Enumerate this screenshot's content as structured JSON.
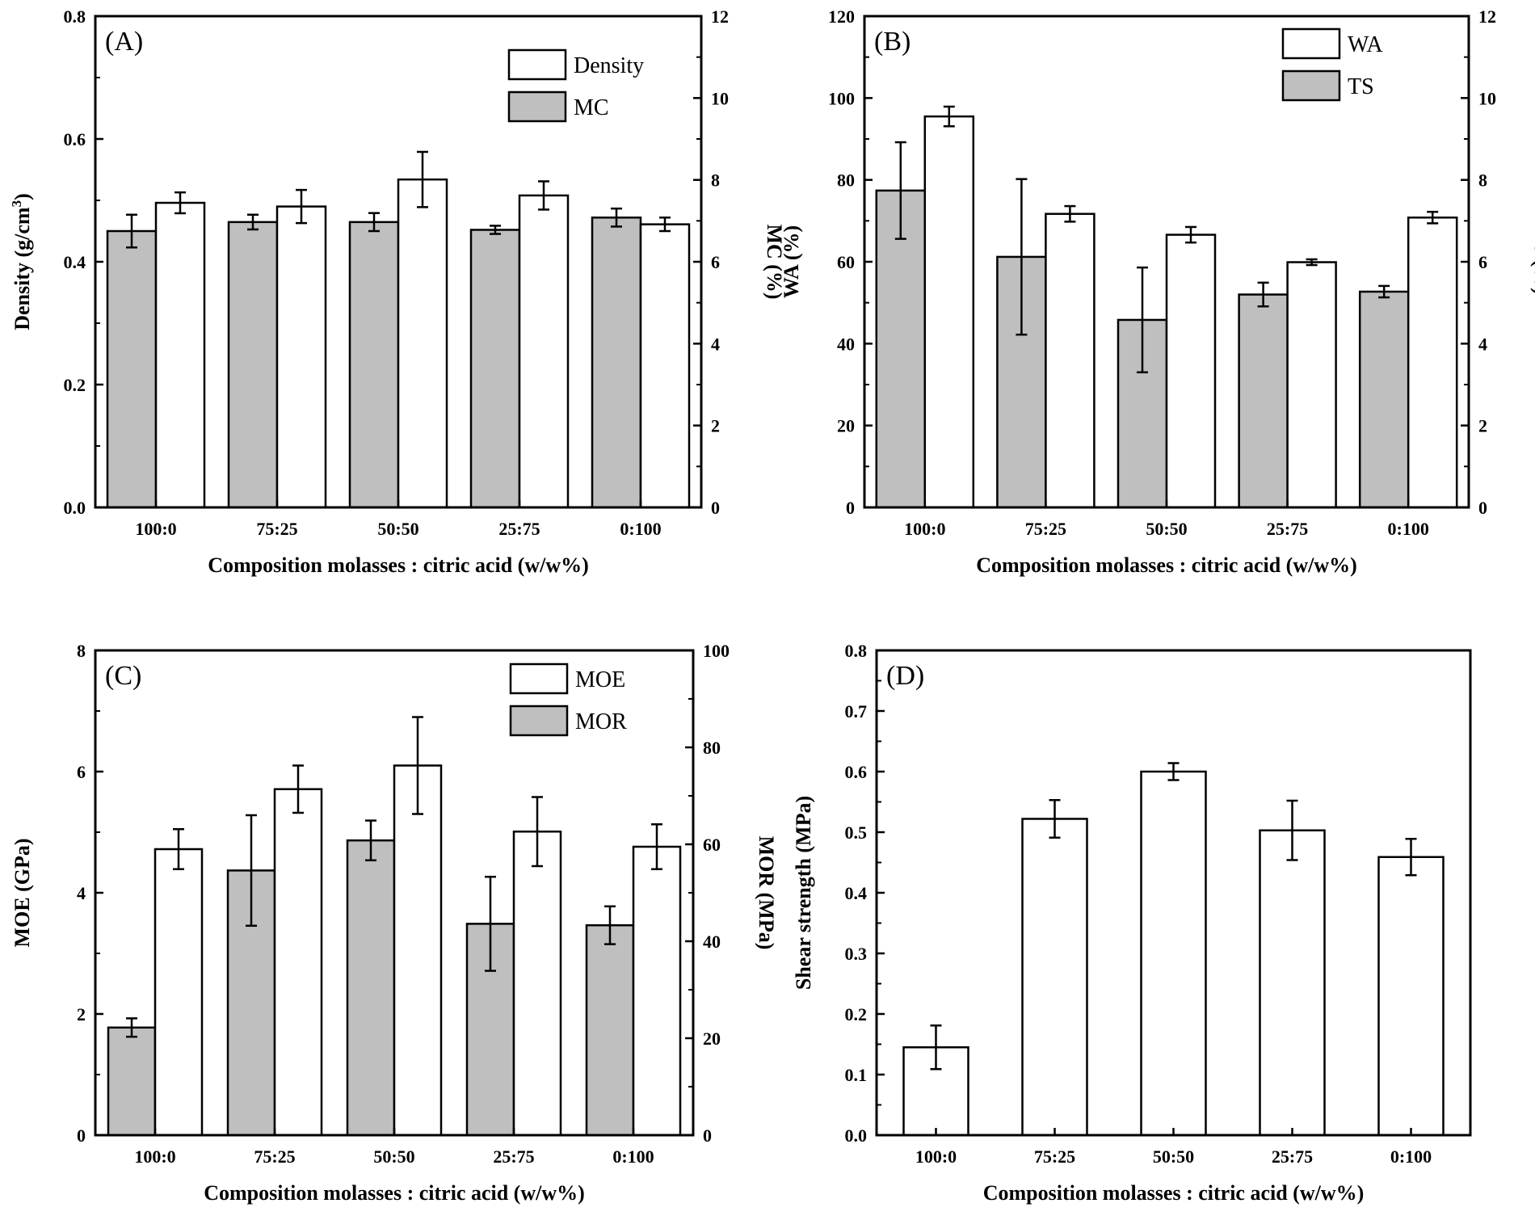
{
  "chart_data": [
    {
      "id": "A",
      "type": "bar",
      "panel_label": "(A)",
      "categories": [
        "100:0",
        "75:25",
        "50:50",
        "25:75",
        "0:100"
      ],
      "xlabel": "Composition molasses : citric acid (w/w%)",
      "left_axis": {
        "label_main": "Density (g/cm",
        "label_sup": "3",
        "label_end": ")",
        "ylim": [
          0,
          0.8
        ],
        "ticks": [
          "0.0",
          "0.2",
          "0.4",
          "0.6",
          "0.8"
        ]
      },
      "right_axis": {
        "label": "MC (%)",
        "ylim": [
          0,
          12
        ],
        "ticks": [
          "0",
          "2",
          "4",
          "6",
          "8",
          "10",
          "12"
        ]
      },
      "series": [
        {
          "name": "MC",
          "axis": "right",
          "fill": "#bfbfbf",
          "values": [
            6.75,
            6.97,
            6.97,
            6.78,
            7.08
          ],
          "errors": [
            0.4,
            0.18,
            0.22,
            0.1,
            0.22
          ]
        },
        {
          "name": "Density",
          "axis": "left",
          "fill": "#ffffff",
          "values": [
            0.496,
            0.49,
            0.534,
            0.508,
            0.461
          ],
          "errors": [
            0.017,
            0.027,
            0.045,
            0.023,
            0.011
          ]
        }
      ],
      "legend_order": [
        "Density",
        "MC"
      ],
      "legend_position": "top-right"
    },
    {
      "id": "B",
      "type": "bar",
      "panel_label": "(B)",
      "categories": [
        "100:0",
        "75:25",
        "50:50",
        "25:75",
        "0:100"
      ],
      "xlabel": "Composition molasses : citric acid (w/w%)",
      "left_axis": {
        "label": "WA (%)",
        "ylim": [
          0,
          120
        ],
        "ticks": [
          "0",
          "20",
          "40",
          "60",
          "80",
          "100",
          "120"
        ]
      },
      "right_axis": {
        "label": "TS (%)",
        "ylim": [
          0,
          12
        ],
        "ticks": [
          "0",
          "2",
          "4",
          "6",
          "8",
          "10",
          "12"
        ]
      },
      "series": [
        {
          "name": "TS",
          "axis": "right",
          "fill": "#bfbfbf",
          "values": [
            7.74,
            6.12,
            4.58,
            5.2,
            5.27
          ],
          "errors": [
            1.18,
            1.9,
            1.28,
            0.29,
            0.14
          ]
        },
        {
          "name": "WA",
          "axis": "left",
          "fill": "#ffffff",
          "values": [
            95.5,
            71.7,
            66.6,
            59.9,
            70.8
          ],
          "errors": [
            2.4,
            1.9,
            1.9,
            0.7,
            1.4
          ]
        }
      ],
      "legend_order": [
        "WA",
        "TS"
      ],
      "legend_position": "top-right"
    },
    {
      "id": "C",
      "type": "bar",
      "panel_label": "(C)",
      "categories": [
        "100:0",
        "75:25",
        "50:50",
        "25:75",
        "0:100"
      ],
      "xlabel": "Composition molasses : citric acid (w/w%)",
      "left_axis": {
        "label": "MOE (GPa)",
        "ylim": [
          0,
          8
        ],
        "ticks": [
          "0",
          "2",
          "4",
          "6",
          "8"
        ]
      },
      "right_axis": {
        "label": "MOR (MPa)",
        "ylim": [
          0,
          100
        ],
        "ticks": [
          "0",
          "20",
          "40",
          "60",
          "80",
          "100"
        ]
      },
      "series": [
        {
          "name": "MOR",
          "axis": "right",
          "fill": "#bfbfbf",
          "values": [
            22.2,
            54.6,
            60.8,
            43.6,
            43.3
          ],
          "errors": [
            1.9,
            11.4,
            4.1,
            9.7,
            3.9
          ]
        },
        {
          "name": "MOE",
          "axis": "left",
          "fill": "#ffffff",
          "values": [
            4.72,
            5.71,
            6.1,
            5.01,
            4.76
          ],
          "errors": [
            0.33,
            0.39,
            0.8,
            0.57,
            0.37
          ]
        }
      ],
      "legend_order": [
        "MOE",
        "MOR"
      ],
      "legend_position": "top-right"
    },
    {
      "id": "D",
      "type": "bar",
      "panel_label": "(D)",
      "categories": [
        "100:0",
        "75:25",
        "50:50",
        "25:75",
        "0:100"
      ],
      "xlabel": "Composition molasses : citric acid (w/w%)",
      "left_axis": {
        "label": "Shear strength (MPa)",
        "ylim": [
          0,
          0.8
        ],
        "ticks": [
          "0.0",
          "0.1",
          "0.2",
          "0.3",
          "0.4",
          "0.5",
          "0.6",
          "0.7",
          "0.8"
        ]
      },
      "series": [
        {
          "name": "Shear strength",
          "axis": "left",
          "fill": "#ffffff",
          "values": [
            0.145,
            0.522,
            0.6,
            0.503,
            0.459
          ],
          "errors": [
            0.036,
            0.031,
            0.014,
            0.049,
            0.03
          ]
        }
      ]
    }
  ]
}
